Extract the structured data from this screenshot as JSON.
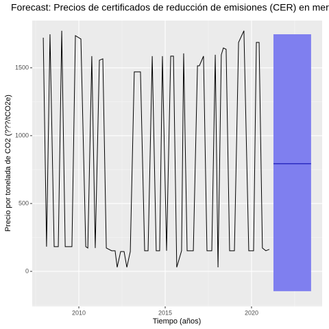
{
  "chart_data": {
    "type": "line",
    "title": "Forecast: Precios de certificados de reducción de emisiones (CER) en merc",
    "x_label": "Tiempo (años)",
    "y_label": "Precio por tonelada de CO2 (???/tCO2e)",
    "x": [
      2007.94,
      2008.13,
      2008.33,
      2008.57,
      2008.81,
      2009.01,
      2009.21,
      2009.6,
      2009.8,
      2010.12,
      2010.4,
      2010.52,
      2010.75,
      2010.95,
      2011.19,
      2011.39,
      2011.59,
      2011.9,
      2012.1,
      2012.22,
      2012.42,
      2012.62,
      2012.78,
      2012.98,
      2013.21,
      2013.57,
      2013.81,
      2014.01,
      2014.25,
      2014.48,
      2014.68,
      2014.84,
      2015.08,
      2015.32,
      2015.48,
      2015.67,
      2015.95,
      2016.07,
      2016.27,
      2016.63,
      2016.87,
      2016.98,
      2017.22,
      2017.42,
      2017.7,
      2017.9,
      2018.06,
      2018.25,
      2018.37,
      2018.53,
      2018.73,
      2019.01,
      2019.25,
      2019.56,
      2019.84,
      2020.12,
      2020.28,
      2020.44,
      2020.63,
      2020.83,
      2021.03
    ],
    "series": [
      {
        "name": "CER",
        "color": "#000000",
        "values": [
          1722,
          182,
          1747,
          182,
          182,
          1773,
          182,
          182,
          1737,
          1712,
          182,
          172,
          1586,
          172,
          1556,
          1566,
          172,
          152,
          152,
          30,
          146,
          146,
          30,
          146,
          1470,
          1470,
          152,
          152,
          1586,
          152,
          152,
          1586,
          152,
          1586,
          1586,
          30,
          152,
          1606,
          152,
          152,
          1515,
          1515,
          1586,
          152,
          152,
          1596,
          30,
          1596,
          1646,
          1636,
          152,
          152,
          1687,
          1773,
          152,
          152,
          1687,
          1687,
          172,
          152,
          162
        ]
      }
    ],
    "forecast": {
      "x": [
        2021.27,
        2023.45
      ],
      "mean": 793,
      "lower": -146,
      "upper": 1747,
      "color": "#7f7fef",
      "mean_color": "#0000aa"
    },
    "xlim": [
      2007.3,
      2024.09
    ],
    "ylim": [
      -258,
      1848
    ],
    "xticks": [
      2010,
      2015,
      2020
    ],
    "yticks": [
      0,
      500,
      1000,
      1500
    ],
    "x_minor_ticks": [
      2007.5,
      2012.5,
      2017.5,
      2022.5
    ],
    "y_minor_ticks": [
      -250,
      250,
      750,
      1250
    ],
    "grid": true
  }
}
